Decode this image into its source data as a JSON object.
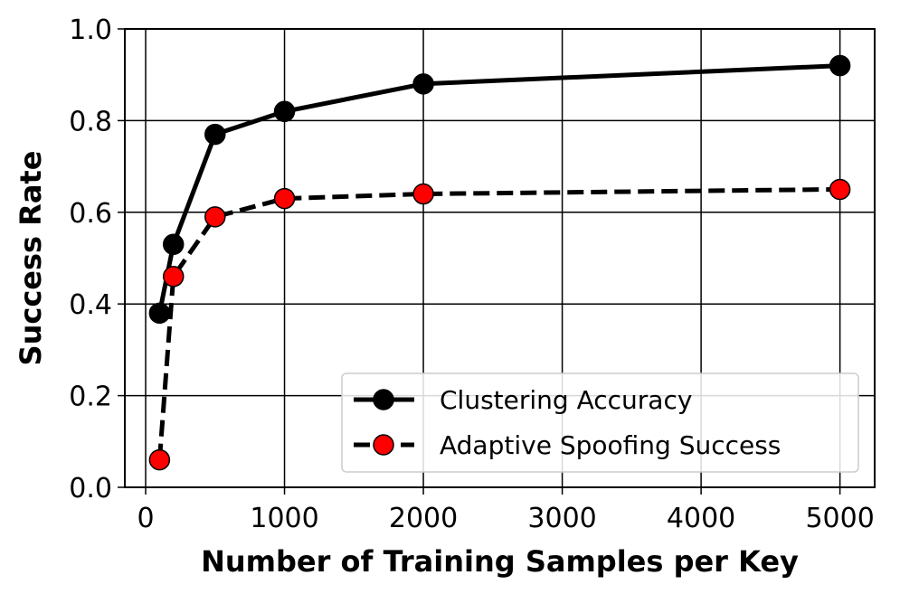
{
  "chart_data": {
    "type": "line",
    "title": "",
    "xlabel": "Number of Training Samples per Key",
    "ylabel": "Success Rate",
    "xlim": [
      -150,
      5250
    ],
    "ylim": [
      0.0,
      1.0
    ],
    "xticks": [
      0,
      1000,
      2000,
      3000,
      4000,
      5000
    ],
    "xtick_labels": [
      "0",
      "1000",
      "2000",
      "3000",
      "4000",
      "5000"
    ],
    "yticks": [
      0.0,
      0.2,
      0.4,
      0.6,
      0.8,
      1.0
    ],
    "ytick_labels": [
      "0.0",
      "0.2",
      "0.4",
      "0.6",
      "0.8",
      "1.0"
    ],
    "grid": true,
    "legend_position": "lower-right",
    "x": [
      100,
      200,
      500,
      1000,
      2000,
      5000
    ],
    "series": [
      {
        "name": "Clustering Accuracy",
        "values": [
          0.38,
          0.53,
          0.77,
          0.82,
          0.88,
          0.92
        ],
        "line_color": "#000000",
        "marker_color": "#000000",
        "line_style": "solid"
      },
      {
        "name": "Adaptive Spoofing Success",
        "values": [
          0.06,
          0.46,
          0.59,
          0.63,
          0.64,
          0.65
        ],
        "line_color": "#000000",
        "marker_color": "#ff0000",
        "line_style": "dashed"
      }
    ]
  }
}
